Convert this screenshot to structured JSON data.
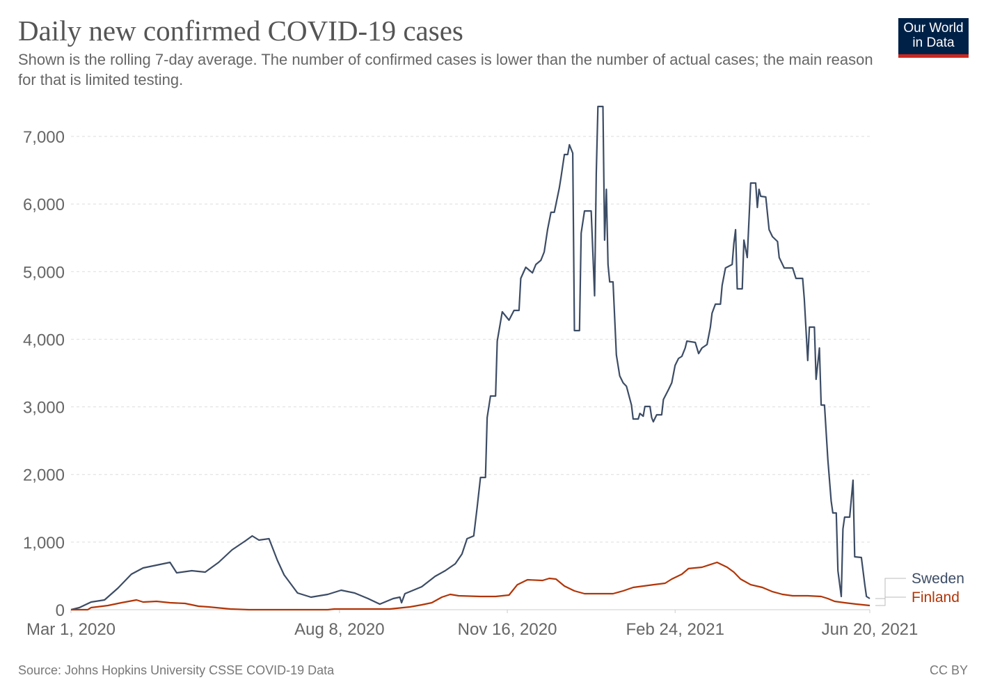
{
  "header": {
    "title": "Daily new confirmed COVID-19 cases",
    "subtitle": "Shown is the rolling 7-day average. The number of confirmed cases is lower than the number of actual cases; the main reason for that is limited testing.",
    "logo_text": "Our World in Data"
  },
  "footer": {
    "source": "Source: Johns Hopkins University CSSE COVID-19 Data",
    "license": "CC BY"
  },
  "chart_data": {
    "type": "line",
    "title": "Daily new confirmed COVID-19 cases",
    "xlim": [
      "2020-03-01",
      "2021-06-20"
    ],
    "ylim": [
      0,
      7000
    ],
    "x_ticks": [
      {
        "date": "2020-03-01",
        "label": "Mar 1, 2020"
      },
      {
        "date": "2020-08-08",
        "label": "Aug 8, 2020"
      },
      {
        "date": "2020-11-16",
        "label": "Nov 16, 2020"
      },
      {
        "date": "2021-02-24",
        "label": "Feb 24, 2021"
      },
      {
        "date": "2021-06-20",
        "label": "Jun 20, 2021"
      }
    ],
    "y_ticks": [
      {
        "value": 0,
        "label": "0"
      },
      {
        "value": 1000,
        "label": "1,000"
      },
      {
        "value": 2000,
        "label": "2,000"
      },
      {
        "value": 3000,
        "label": "3,000"
      },
      {
        "value": 4000,
        "label": "4,000"
      },
      {
        "value": 5000,
        "label": "5,000"
      },
      {
        "value": 6000,
        "label": "6,000"
      },
      {
        "value": 7000,
        "label": "7,000"
      }
    ],
    "grid": "horizontal-dashed",
    "legend": "right-end-labels",
    "series": [
      {
        "name": "Sweden",
        "color": "#3c4c65",
        "points": [
          [
            "2020-03-01",
            0
          ],
          [
            "2020-03-06",
            31
          ],
          [
            "2020-03-13",
            113
          ],
          [
            "2020-03-21",
            144
          ],
          [
            "2020-03-29",
            319
          ],
          [
            "2020-04-06",
            525
          ],
          [
            "2020-04-13",
            618
          ],
          [
            "2020-04-21",
            659
          ],
          [
            "2020-04-29",
            700
          ],
          [
            "2020-05-03",
            546
          ],
          [
            "2020-05-12",
            576
          ],
          [
            "2020-05-20",
            556
          ],
          [
            "2020-05-28",
            700
          ],
          [
            "2020-06-05",
            885
          ],
          [
            "2020-06-13",
            1019
          ],
          [
            "2020-06-17",
            1091
          ],
          [
            "2020-06-21",
            1029
          ],
          [
            "2020-06-27",
            1050
          ],
          [
            "2020-07-02",
            731
          ],
          [
            "2020-07-06",
            515
          ],
          [
            "2020-07-14",
            247
          ],
          [
            "2020-07-22",
            185
          ],
          [
            "2020-08-01",
            226
          ],
          [
            "2020-08-09",
            288
          ],
          [
            "2020-08-17",
            247
          ],
          [
            "2020-08-25",
            165
          ],
          [
            "2020-09-01",
            82
          ],
          [
            "2020-09-09",
            165
          ],
          [
            "2020-09-13",
            185
          ],
          [
            "2020-09-14",
            103
          ],
          [
            "2020-09-16",
            237
          ],
          [
            "2020-09-26",
            340
          ],
          [
            "2020-10-04",
            494
          ],
          [
            "2020-10-10",
            576
          ],
          [
            "2020-10-16",
            679
          ],
          [
            "2020-10-20",
            824
          ],
          [
            "2020-10-23",
            1050
          ],
          [
            "2020-10-27",
            1091
          ],
          [
            "2020-10-29",
            1503
          ],
          [
            "2020-10-31",
            1956
          ],
          [
            "2020-11-03",
            1956
          ],
          [
            "2020-11-04",
            2841
          ],
          [
            "2020-11-06",
            3160
          ],
          [
            "2020-11-09",
            3160
          ],
          [
            "2020-11-10",
            3973
          ],
          [
            "2020-11-13",
            4406
          ],
          [
            "2020-11-17",
            4282
          ],
          [
            "2020-11-20",
            4426
          ],
          [
            "2020-11-23",
            4426
          ],
          [
            "2020-11-24",
            4900
          ],
          [
            "2020-11-27",
            5065
          ],
          [
            "2020-12-01",
            4982
          ],
          [
            "2020-12-03",
            5106
          ],
          [
            "2020-12-06",
            5168
          ],
          [
            "2020-12-08",
            5291
          ],
          [
            "2020-12-10",
            5621
          ],
          [
            "2020-12-12",
            5878
          ],
          [
            "2020-12-14",
            5878
          ],
          [
            "2020-12-17",
            6238
          ],
          [
            "2020-12-18",
            6393
          ],
          [
            "2020-12-20",
            6732
          ],
          [
            "2020-12-22",
            6732
          ],
          [
            "2020-12-23",
            6876
          ],
          [
            "2020-12-25",
            6753
          ],
          [
            "2020-12-26",
            4128
          ],
          [
            "2020-12-29",
            4128
          ],
          [
            "2020-12-30",
            5569
          ],
          [
            "2021-01-01",
            5898
          ],
          [
            "2021-01-05",
            5898
          ],
          [
            "2021-01-07",
            4643
          ],
          [
            "2021-01-08",
            6444
          ],
          [
            "2021-01-09",
            7443
          ],
          [
            "2021-01-12",
            7443
          ],
          [
            "2021-01-13",
            5466
          ],
          [
            "2021-01-14",
            6218
          ],
          [
            "2021-01-15",
            5106
          ],
          [
            "2021-01-16",
            4849
          ],
          [
            "2021-01-18",
            4849
          ],
          [
            "2021-01-20",
            3768
          ],
          [
            "2021-01-22",
            3459
          ],
          [
            "2021-01-24",
            3356
          ],
          [
            "2021-01-26",
            3304
          ],
          [
            "2021-01-29",
            3026
          ],
          [
            "2021-01-30",
            2821
          ],
          [
            "2021-02-02",
            2821
          ],
          [
            "2021-02-03",
            2903
          ],
          [
            "2021-02-05",
            2862
          ],
          [
            "2021-02-06",
            3006
          ],
          [
            "2021-02-09",
            3006
          ],
          [
            "2021-02-10",
            2841
          ],
          [
            "2021-02-11",
            2779
          ],
          [
            "2021-02-13",
            2882
          ],
          [
            "2021-02-16",
            2882
          ],
          [
            "2021-02-17",
            3109
          ],
          [
            "2021-02-20",
            3253
          ],
          [
            "2021-02-22",
            3356
          ],
          [
            "2021-02-24",
            3613
          ],
          [
            "2021-02-26",
            3716
          ],
          [
            "2021-02-28",
            3747
          ],
          [
            "2021-03-02",
            3871
          ],
          [
            "2021-03-03",
            3973
          ],
          [
            "2021-03-08",
            3953
          ],
          [
            "2021-03-10",
            3788
          ],
          [
            "2021-03-12",
            3871
          ],
          [
            "2021-03-15",
            3922
          ],
          [
            "2021-03-17",
            4179
          ],
          [
            "2021-03-18",
            4385
          ],
          [
            "2021-03-20",
            4519
          ],
          [
            "2021-03-23",
            4519
          ],
          [
            "2021-03-24",
            4797
          ],
          [
            "2021-03-26",
            5054
          ],
          [
            "2021-03-30",
            5106
          ],
          [
            "2021-03-31",
            5415
          ],
          [
            "2021-04-01",
            5621
          ],
          [
            "2021-04-02",
            4746
          ],
          [
            "2021-04-05",
            4746
          ],
          [
            "2021-04-06",
            5466
          ],
          [
            "2021-04-08",
            5209
          ],
          [
            "2021-04-10",
            6310
          ],
          [
            "2021-04-13",
            6310
          ],
          [
            "2021-04-14",
            5950
          ],
          [
            "2021-04-15",
            6218
          ],
          [
            "2021-04-16",
            6115
          ],
          [
            "2021-04-19",
            6104
          ],
          [
            "2021-04-21",
            5621
          ],
          [
            "2021-04-23",
            5518
          ],
          [
            "2021-04-26",
            5446
          ],
          [
            "2021-04-27",
            5209
          ],
          [
            "2021-04-30",
            5054
          ],
          [
            "2021-05-05",
            5054
          ],
          [
            "2021-05-07",
            4900
          ],
          [
            "2021-05-11",
            4900
          ],
          [
            "2021-05-12",
            4591
          ],
          [
            "2021-05-14",
            3685
          ],
          [
            "2021-05-15",
            4179
          ],
          [
            "2021-05-18",
            4179
          ],
          [
            "2021-05-19",
            3407
          ],
          [
            "2021-05-21",
            3871
          ],
          [
            "2021-05-22",
            3026
          ],
          [
            "2021-05-24",
            3026
          ],
          [
            "2021-05-26",
            2223
          ],
          [
            "2021-05-28",
            1606
          ],
          [
            "2021-05-29",
            1431
          ],
          [
            "2021-05-31",
            1431
          ],
          [
            "2021-06-01",
            576
          ],
          [
            "2021-06-03",
            196
          ],
          [
            "2021-06-04",
            1194
          ],
          [
            "2021-06-05",
            1369
          ],
          [
            "2021-06-08",
            1369
          ],
          [
            "2021-06-10",
            1915
          ],
          [
            "2021-06-11",
            782
          ],
          [
            "2021-06-15",
            772
          ],
          [
            "2021-06-17",
            371
          ],
          [
            "2021-06-18",
            196
          ],
          [
            "2021-06-20",
            165
          ]
        ]
      },
      {
        "name": "Finland",
        "color": "#b13507",
        "points": [
          [
            "2020-03-01",
            0
          ],
          [
            "2020-03-11",
            0
          ],
          [
            "2020-03-13",
            31
          ],
          [
            "2020-03-23",
            62
          ],
          [
            "2020-03-31",
            103
          ],
          [
            "2020-04-09",
            144
          ],
          [
            "2020-04-13",
            113
          ],
          [
            "2020-04-21",
            124
          ],
          [
            "2020-04-29",
            103
          ],
          [
            "2020-05-08",
            93
          ],
          [
            "2020-05-16",
            51
          ],
          [
            "2020-05-22",
            41
          ],
          [
            "2020-06-04",
            10
          ],
          [
            "2020-06-15",
            0
          ],
          [
            "2020-08-01",
            0
          ],
          [
            "2020-08-05",
            10
          ],
          [
            "2020-09-07",
            10
          ],
          [
            "2020-09-19",
            41
          ],
          [
            "2020-09-26",
            72
          ],
          [
            "2020-10-02",
            103
          ],
          [
            "2020-10-08",
            185
          ],
          [
            "2020-10-13",
            226
          ],
          [
            "2020-10-18",
            206
          ],
          [
            "2020-10-31",
            196
          ],
          [
            "2020-11-09",
            196
          ],
          [
            "2020-11-17",
            216
          ],
          [
            "2020-11-22",
            370
          ],
          [
            "2020-11-28",
            443
          ],
          [
            "2020-12-07",
            432
          ],
          [
            "2020-12-11",
            463
          ],
          [
            "2020-12-15",
            453
          ],
          [
            "2020-12-20",
            350
          ],
          [
            "2020-12-26",
            278
          ],
          [
            "2021-01-01",
            237
          ],
          [
            "2021-01-18",
            237
          ],
          [
            "2021-01-24",
            278
          ],
          [
            "2021-01-30",
            329
          ],
          [
            "2021-02-11",
            370
          ],
          [
            "2021-02-18",
            391
          ],
          [
            "2021-02-22",
            453
          ],
          [
            "2021-02-28",
            525
          ],
          [
            "2021-03-04",
            608
          ],
          [
            "2021-03-12",
            628
          ],
          [
            "2021-03-21",
            700
          ],
          [
            "2021-03-27",
            628
          ],
          [
            "2021-03-31",
            556
          ],
          [
            "2021-04-04",
            453
          ],
          [
            "2021-04-10",
            370
          ],
          [
            "2021-04-17",
            329
          ],
          [
            "2021-04-23",
            267
          ],
          [
            "2021-04-29",
            226
          ],
          [
            "2021-05-05",
            206
          ],
          [
            "2021-05-14",
            206
          ],
          [
            "2021-05-22",
            196
          ],
          [
            "2021-05-26",
            165
          ],
          [
            "2021-05-30",
            124
          ],
          [
            "2021-06-05",
            103
          ],
          [
            "2021-06-12",
            82
          ],
          [
            "2021-06-20",
            62
          ]
        ]
      }
    ]
  }
}
